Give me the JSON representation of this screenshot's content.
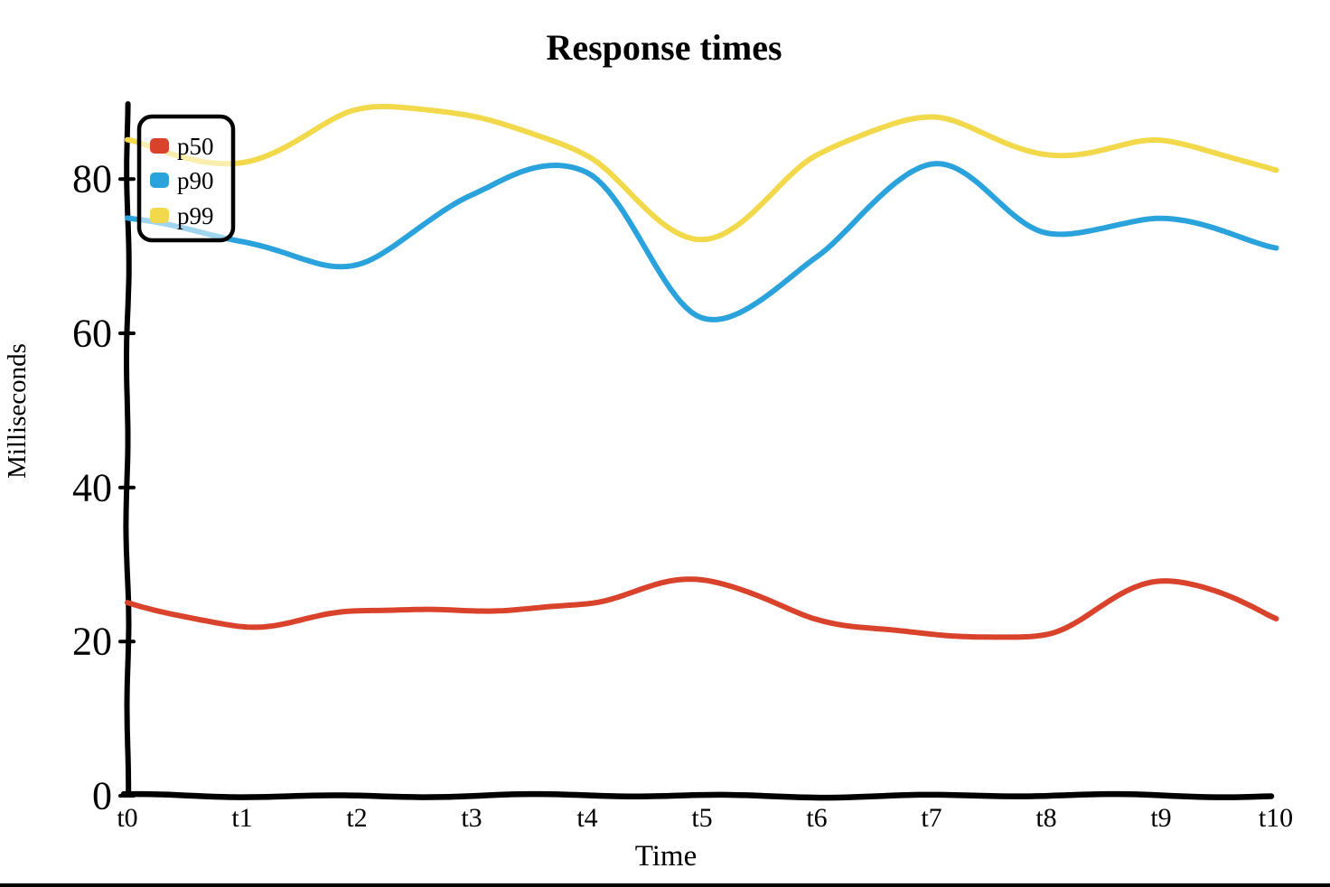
{
  "chart_data": {
    "type": "line",
    "title": "Response times",
    "xlabel": "Time",
    "ylabel": "Milliseconds",
    "categories": [
      "t0",
      "t1",
      "t2",
      "t3",
      "t4",
      "t5",
      "t6",
      "t7",
      "t8",
      "t9",
      "t10"
    ],
    "y_ticks": [
      0,
      20,
      40,
      60,
      80
    ],
    "ylim": [
      0,
      90
    ],
    "grid": false,
    "legend_position": "upper-left",
    "style": "hand-drawn xkcd-like thick smooth lines",
    "axis_color": "#000000",
    "series": [
      {
        "name": "p50",
        "color": "#d9432c",
        "values": [
          25,
          22,
          24,
          24,
          25,
          28,
          23,
          21,
          21,
          28,
          23
        ]
      },
      {
        "name": "p90",
        "color": "#2aa2dc",
        "values": [
          75,
          72,
          69,
          78,
          81,
          62,
          70,
          82,
          73,
          75,
          71
        ]
      },
      {
        "name": "p99",
        "color": "#f2d94b",
        "values": [
          85,
          82,
          89,
          88,
          83,
          72,
          83,
          88,
          83,
          85,
          81
        ]
      }
    ]
  }
}
